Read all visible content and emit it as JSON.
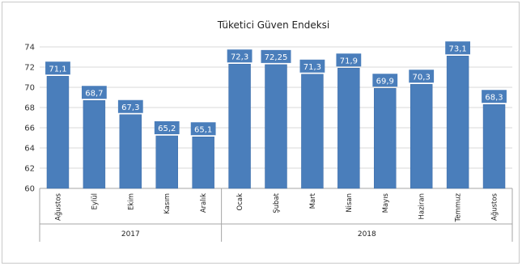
{
  "chart_data": {
    "type": "bar",
    "title": "Tüketici Güven Endeksi",
    "categories": [
      "Ağustos",
      "Eylül",
      "Ekim",
      "Kasım",
      "Aralık",
      "Ocak",
      "Şubat",
      "Mart",
      "Nisan",
      "Mayıs",
      "Haziran",
      "Temmuz",
      "Ağustos"
    ],
    "values": [
      71.1,
      68.7,
      67.3,
      65.2,
      65.1,
      72.3,
      72.25,
      71.3,
      71.9,
      69.9,
      70.3,
      73.1,
      68.3
    ],
    "data_labels": [
      "71,1",
      "68,7",
      "67,3",
      "65,2",
      "65,1",
      "72,3",
      "72,25",
      "71,3",
      "71,9",
      "69,9",
      "70,3",
      "73,1",
      "68,3"
    ],
    "groups": [
      {
        "label": "2017",
        "count": 5
      },
      {
        "label": "2018",
        "count": 8
      }
    ],
    "ylim": [
      60,
      74
    ],
    "yticks": [
      60,
      62,
      64,
      66,
      68,
      70,
      72,
      74
    ],
    "grid": true,
    "legend": "none",
    "colors": {
      "bar": "#4a7ebb",
      "bar_edge": "#3a6aa5",
      "label_bg": "#4a7ebb",
      "grid": "#d9d9d9",
      "axis": "#a6a6a6"
    }
  }
}
